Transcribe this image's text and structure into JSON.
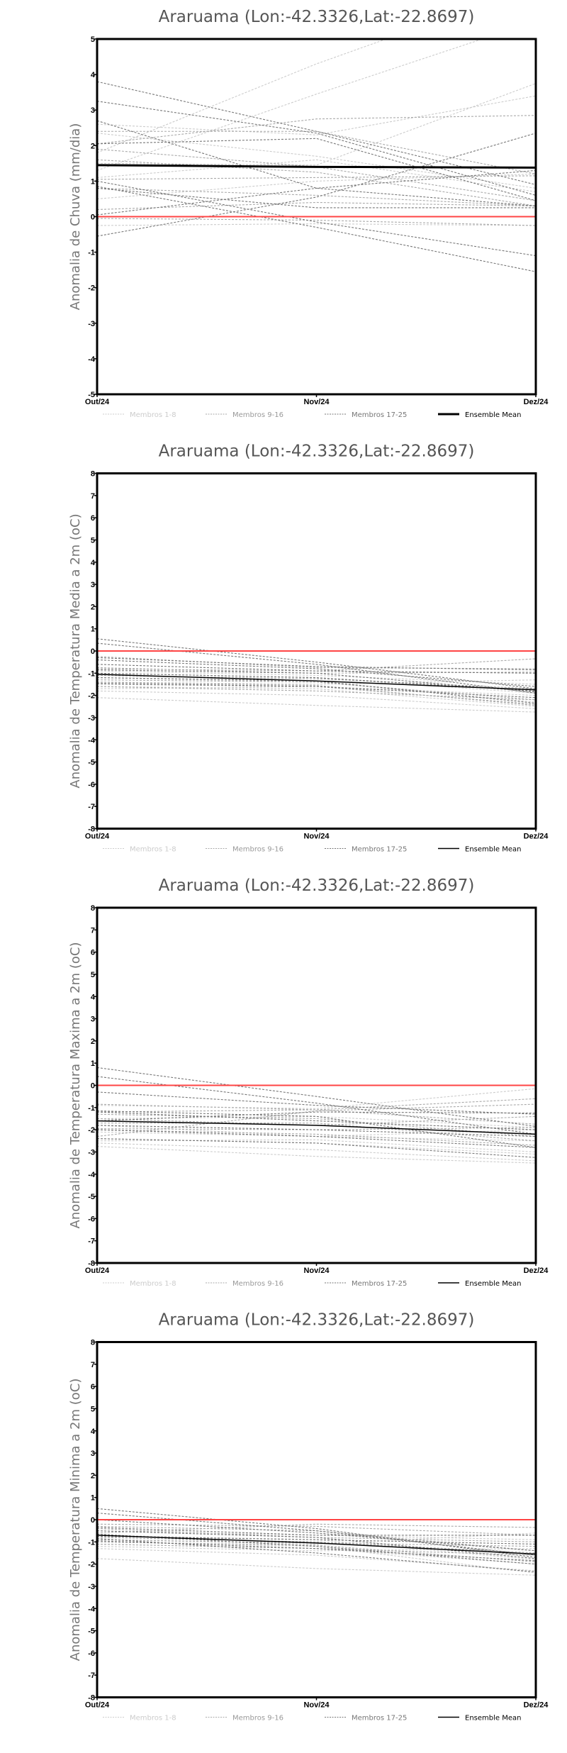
{
  "legend": {
    "items": [
      {
        "label": "Membros 1-8",
        "color": "#cccccc",
        "text_color": "#cccccc"
      },
      {
        "label": "Membros 9-16",
        "color": "#aaaaaa",
        "text_color": "#999999"
      },
      {
        "label": "Membros 17-25",
        "color": "#777777",
        "text_color": "#777777"
      },
      {
        "label": "Ensemble Mean",
        "color": "#000000",
        "text_color": "#000000"
      }
    ]
  },
  "colors": {
    "zero_line": "#ff4444",
    "axis": "#000000"
  },
  "chart_data": [
    {
      "type": "line",
      "title": "Araruama (Lon:-42.3326,Lat:-22.8697)",
      "ylabel": "Anomalia de Chuva (mm/dia)",
      "categories": [
        "Out/24",
        "Nov/24",
        "Dez/24"
      ],
      "ylim": [
        -5,
        5
      ],
      "yticks": [
        -5,
        -4,
        -3,
        -2,
        -1,
        0,
        1,
        2,
        3,
        4,
        5
      ],
      "mean_width": 3,
      "ensemble_mean": [
        1.45,
        1.4,
        1.38
      ],
      "members": [
        [
          [
            1.8,
            4.3,
            6.5
          ],
          [
            1.3,
            3.45,
            5.5
          ],
          [
            1.5,
            1.45,
            3.75
          ],
          [
            2.6,
            2.3,
            3.4
          ],
          [
            0.5,
            1.0,
            1.2
          ],
          [
            -0.25,
            -0.2,
            -0.25
          ],
          [
            2.35,
            1.7,
            0.8
          ],
          [
            1.1,
            1.6,
            0.7
          ]
        ],
        [
          [
            2.05,
            2.75,
            2.85
          ],
          [
            2.4,
            2.4,
            1.2
          ],
          [
            1.9,
            1.4,
            0.45
          ],
          [
            0.8,
            0.6,
            0.3
          ],
          [
            0.2,
            0.4,
            0.3
          ],
          [
            1.6,
            1.25,
            0.3
          ],
          [
            1.05,
            1.1,
            1.15
          ],
          [
            -0.05,
            -0.1,
            -0.25
          ]
        ],
        [
          [
            3.8,
            2.4,
            0.9
          ],
          [
            3.25,
            2.35,
            0.6
          ],
          [
            2.7,
            0.8,
            0.3
          ],
          [
            2.05,
            2.2,
            0.45
          ],
          [
            -0.55,
            0.55,
            2.35
          ],
          [
            0.8,
            0.25,
            0.25
          ],
          [
            0.05,
            0.8,
            1.3
          ],
          [
            1.0,
            -0.15,
            -1.1
          ],
          [
            0.85,
            -0.3,
            -1.55
          ]
        ]
      ]
    },
    {
      "type": "line",
      "title": "Araruama (Lon:-42.3326,Lat:-22.8697)",
      "ylabel": "Anomalia de Temperatura Media a 2m (oC)",
      "categories": [
        "Out/24",
        "Nov/24",
        "Dez/24"
      ],
      "ylim": [
        -8,
        8
      ],
      "yticks": [
        -8,
        -7,
        -6,
        -5,
        -4,
        -3,
        -2,
        -1,
        0,
        1,
        2,
        3,
        4,
        5,
        6,
        7,
        8
      ],
      "mean_width": 1.5,
      "ensemble_mean": [
        -1.05,
        -1.35,
        -1.75
      ],
      "members": [
        [
          [
            -2.1,
            -2.45,
            -2.75
          ],
          [
            -1.8,
            -2.0,
            -2.6
          ],
          [
            -1.6,
            -1.7,
            -2.5
          ],
          [
            -1.4,
            -1.5,
            -1.3
          ],
          [
            -1.2,
            -1.4,
            -2.3
          ],
          [
            -0.9,
            -1.1,
            -1.5
          ],
          [
            -1.7,
            -1.6,
            -2.0
          ],
          [
            -1.0,
            -1.2,
            -1.9
          ]
        ],
        [
          [
            -0.8,
            -0.9,
            -0.35
          ],
          [
            -1.3,
            -1.4,
            -2.2
          ],
          [
            -1.5,
            -1.6,
            -2.4
          ],
          [
            -0.25,
            -0.75,
            -0.8
          ],
          [
            -1.1,
            -1.25,
            -1.7
          ],
          [
            -1.6,
            -1.8,
            -2.2
          ],
          [
            -0.75,
            -1.0,
            -0.95
          ],
          [
            -1.4,
            -1.55,
            -2.45
          ]
        ],
        [
          [
            0.55,
            -0.5,
            -1.7
          ],
          [
            0.35,
            -0.6,
            -1.9
          ],
          [
            -0.3,
            -0.7,
            -0.85
          ],
          [
            -0.4,
            -0.8,
            -1.6
          ],
          [
            -1.45,
            -1.6,
            -2.1
          ],
          [
            -0.85,
            -1.0,
            -1.85
          ],
          [
            -1.2,
            -1.35,
            -2.35
          ],
          [
            -0.6,
            -0.9,
            -1.0
          ],
          [
            -1.0,
            -1.2,
            -1.8
          ]
        ]
      ]
    },
    {
      "type": "line",
      "title": "Araruama (Lon:-42.3326,Lat:-22.8697)",
      "ylabel": "Anomalia de Temperatura Maxima a 2m (oC)",
      "categories": [
        "Out/24",
        "Nov/24",
        "Dez/24"
      ],
      "ylim": [
        -8,
        8
      ],
      "yticks": [
        -8,
        -7,
        -6,
        -5,
        -4,
        -3,
        -2,
        -1,
        0,
        1,
        2,
        3,
        4,
        5,
        6,
        7,
        8
      ],
      "mean_width": 1.5,
      "ensemble_mean": [
        -1.6,
        -1.8,
        -2.2
      ],
      "members": [
        [
          [
            -2.75,
            -3.2,
            -3.5
          ],
          [
            -2.6,
            -2.9,
            -3.4
          ],
          [
            -2.4,
            -2.6,
            -3.1
          ],
          [
            -1.8,
            -2.3,
            -2.5
          ],
          [
            -0.9,
            -1.05,
            -0.15
          ],
          [
            -2.1,
            -2.3,
            -2.0
          ],
          [
            -1.5,
            -1.4,
            -1.9
          ],
          [
            -2.5,
            -2.45,
            -3.0
          ]
        ],
        [
          [
            -0.85,
            -1.1,
            -0.6
          ],
          [
            -1.2,
            -1.1,
            -1.75
          ],
          [
            -1.7,
            -1.7,
            -2.5
          ],
          [
            -2.3,
            -1.15,
            -0.85
          ],
          [
            -1.95,
            -2.0,
            -1.9
          ],
          [
            -1.3,
            -1.5,
            -2.3
          ],
          [
            -2.0,
            -2.2,
            -2.7
          ],
          [
            -1.5,
            -1.8,
            -1.4
          ]
        ],
        [
          [
            0.8,
            -0.5,
            -1.85
          ],
          [
            0.4,
            -0.8,
            -2.2
          ],
          [
            -0.3,
            -0.9,
            -1.3
          ],
          [
            -1.15,
            -1.4,
            -2.8
          ],
          [
            -2.4,
            -2.6,
            -3.25
          ],
          [
            -1.8,
            -2.0,
            -2.3
          ],
          [
            -1.6,
            -1.2,
            -1.25
          ],
          [
            -2.0,
            -2.3,
            -2.8
          ],
          [
            -1.2,
            -1.6,
            -2.0
          ]
        ]
      ]
    },
    {
      "type": "line",
      "title": "Araruama (Lon:-42.3326,Lat:-22.8697)",
      "ylabel": "Anomalia de Temperatura Minima a 2m (oC)",
      "categories": [
        "Out/24",
        "Nov/24",
        "Dez/24"
      ],
      "ylim": [
        -8,
        8
      ],
      "yticks": [
        -8,
        -7,
        -6,
        -5,
        -4,
        -3,
        -2,
        -1,
        0,
        1,
        2,
        3,
        4,
        5,
        6,
        7,
        8
      ],
      "mean_width": 1.5,
      "ensemble_mean": [
        -0.7,
        -1.05,
        -1.55
      ],
      "members": [
        [
          [
            -1.75,
            -2.2,
            -2.5
          ],
          [
            -1.3,
            -1.6,
            -2.3
          ],
          [
            -1.1,
            -1.3,
            -2.0
          ],
          [
            -0.9,
            -1.1,
            -0.6
          ],
          [
            -0.7,
            -0.9,
            -1.8
          ],
          [
            -1.2,
            -1.4,
            -1.3
          ],
          [
            -0.5,
            -0.7,
            -0.9
          ],
          [
            -1.0,
            -1.2,
            -2.4
          ]
        ],
        [
          [
            -0.2,
            -0.3,
            -0.7
          ],
          [
            -0.8,
            -1.0,
            -1.5
          ],
          [
            -0.4,
            -0.8,
            -1.0
          ],
          [
            -1.0,
            -1.15,
            -1.9
          ],
          [
            -0.6,
            -0.2,
            -0.35
          ],
          [
            -1.1,
            -1.3,
            -1.6
          ],
          [
            -0.9,
            -1.05,
            -1.2
          ],
          [
            -0.3,
            -0.5,
            -1.4
          ]
        ],
        [
          [
            0.5,
            -0.4,
            -1.7
          ],
          [
            0.3,
            -0.5,
            -1.6
          ],
          [
            0.0,
            -0.6,
            -1.4
          ],
          [
            -0.5,
            -0.8,
            -1.75
          ],
          [
            -0.85,
            -1.5,
            -2.35
          ],
          [
            -0.65,
            -1.2,
            -2.0
          ],
          [
            -0.35,
            -0.7,
            -0.7
          ],
          [
            -0.95,
            -1.3,
            -1.85
          ],
          [
            -0.75,
            -0.9,
            -1.1
          ]
        ]
      ]
    }
  ]
}
